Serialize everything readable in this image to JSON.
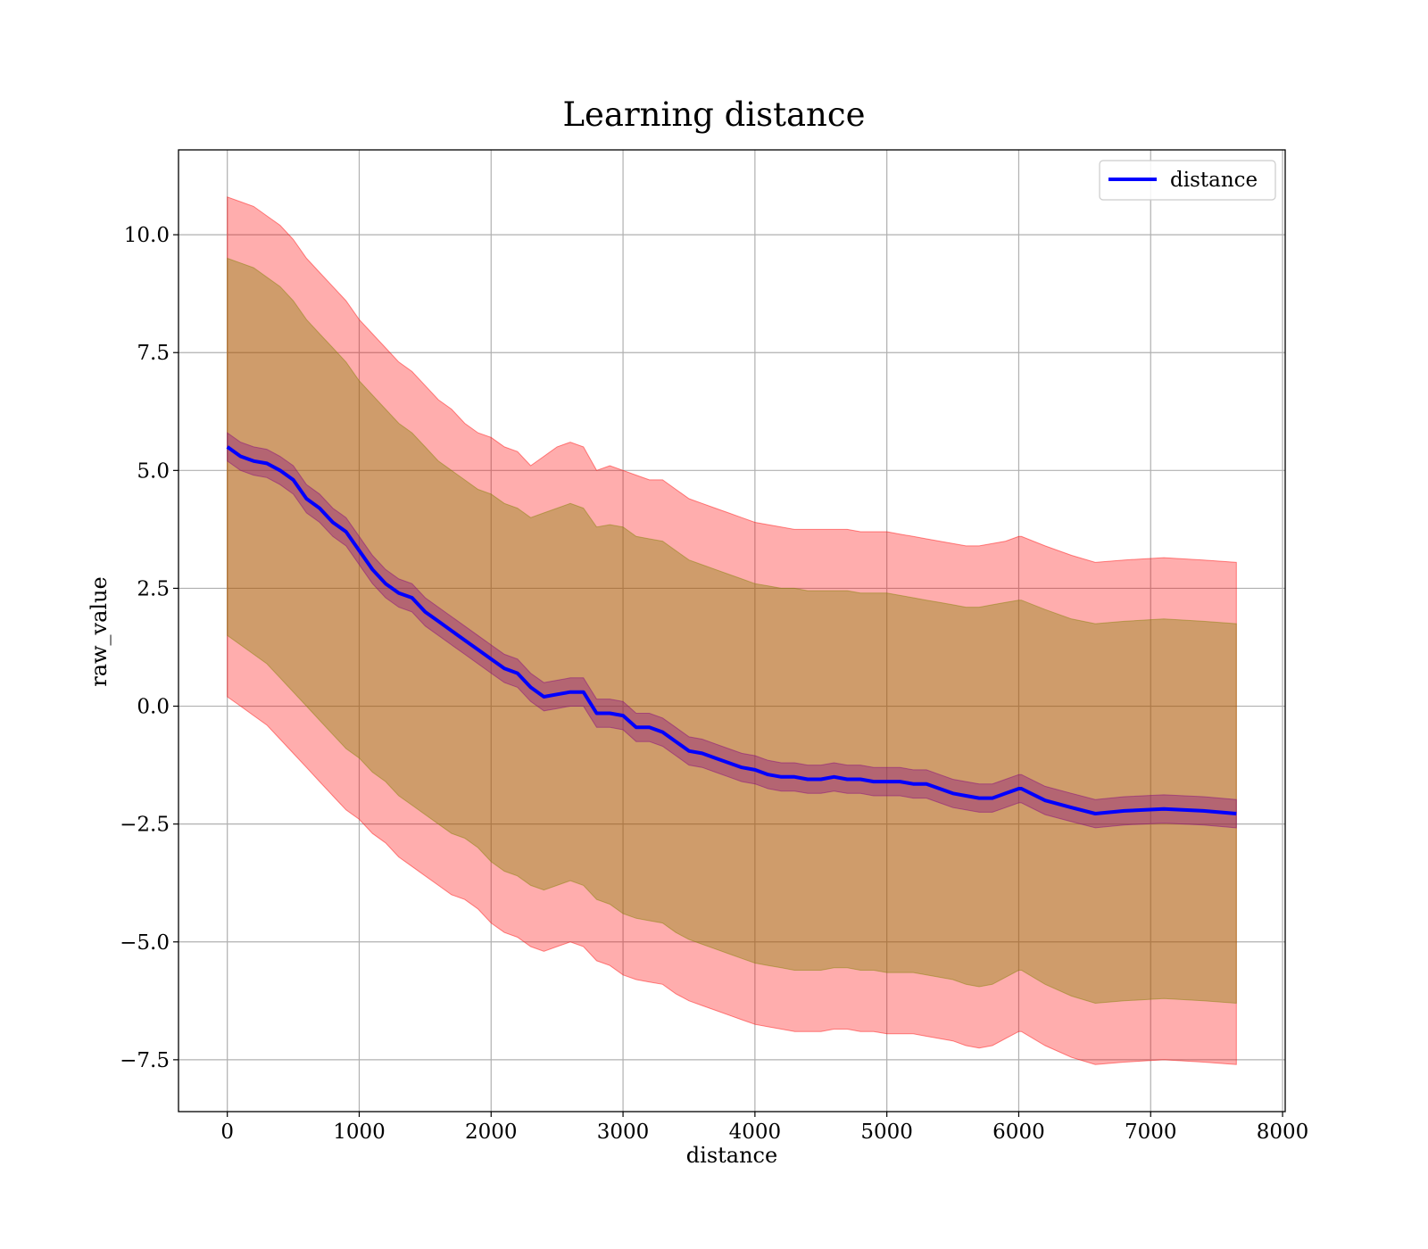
{
  "chart_data": {
    "type": "line",
    "title": "Learning distance",
    "xlabel": "distance",
    "ylabel": "raw_value",
    "xlim": [
      -370,
      8020
    ],
    "ylim": [
      -8.6,
      11.8
    ],
    "x_ticks": [
      0,
      1000,
      2000,
      3000,
      4000,
      5000,
      6000,
      7000,
      8000
    ],
    "x_tick_labels": [
      "0",
      "1000",
      "2000",
      "3000",
      "4000",
      "5000",
      "6000",
      "7000",
      "8000"
    ],
    "y_ticks": [
      -7.5,
      -5.0,
      -2.5,
      0.0,
      2.5,
      5.0,
      7.5,
      10.0
    ],
    "y_tick_labels": [
      "−7.5",
      "−5.0",
      "−2.5",
      "0.0",
      "2.5",
      "5.0",
      "7.5",
      "10.0"
    ],
    "grid": true,
    "legend": {
      "position": "top-right",
      "entries": [
        "distance"
      ]
    },
    "colors": {
      "line": "#0000ff",
      "outer_band": "#ff0000",
      "middle_band": "#808000",
      "inner_band": "#800080"
    },
    "x": [
      0,
      100,
      200,
      300,
      400,
      500,
      600,
      700,
      800,
      900,
      1000,
      1100,
      1200,
      1300,
      1400,
      1500,
      1600,
      1700,
      1800,
      1900,
      2000,
      2100,
      2200,
      2300,
      2400,
      2500,
      2600,
      2700,
      2800,
      2900,
      3000,
      3100,
      3200,
      3300,
      3400,
      3500,
      3600,
      3700,
      3800,
      3900,
      4000,
      4100,
      4200,
      4300,
      4400,
      4500,
      4600,
      4700,
      4800,
      4900,
      5000,
      5100,
      5200,
      5300,
      5400,
      5500,
      5600,
      5700,
      5800,
      5900,
      6000,
      6020,
      6200,
      6400,
      6580,
      6800,
      7100,
      7400,
      7650
    ],
    "series": [
      {
        "name": "distance",
        "kind": "line",
        "values": [
          5.5,
          5.3,
          5.2,
          5.15,
          5.0,
          4.8,
          4.4,
          4.2,
          3.9,
          3.7,
          3.3,
          2.9,
          2.6,
          2.4,
          2.3,
          2.0,
          1.8,
          1.6,
          1.4,
          1.2,
          1.0,
          0.8,
          0.7,
          0.4,
          0.2,
          0.25,
          0.3,
          0.3,
          -0.15,
          -0.15,
          -0.2,
          -0.45,
          -0.45,
          -0.55,
          -0.75,
          -0.95,
          -1.0,
          -1.1,
          -1.2,
          -1.3,
          -1.35,
          -1.45,
          -1.5,
          -1.5,
          -1.55,
          -1.55,
          -1.5,
          -1.55,
          -1.55,
          -1.6,
          -1.6,
          -1.6,
          -1.65,
          -1.65,
          -1.75,
          -1.85,
          -1.9,
          -1.95,
          -1.95,
          -1.85,
          -1.75,
          -1.75,
          -2.0,
          -2.15,
          -2.28,
          -2.22,
          -2.18,
          -2.22,
          -2.28
        ]
      },
      {
        "kind": "band",
        "role": "outer",
        "upper": [
          10.8,
          10.7,
          10.6,
          10.4,
          10.2,
          9.9,
          9.5,
          9.2,
          8.9,
          8.6,
          8.2,
          7.9,
          7.6,
          7.3,
          7.1,
          6.8,
          6.5,
          6.3,
          6.0,
          5.8,
          5.7,
          5.5,
          5.4,
          5.1,
          5.3,
          5.5,
          5.6,
          5.5,
          5.0,
          5.1,
          5.0,
          4.9,
          4.8,
          4.8,
          4.6,
          4.4,
          4.3,
          4.2,
          4.1,
          4.0,
          3.9,
          3.85,
          3.8,
          3.75,
          3.75,
          3.75,
          3.75,
          3.75,
          3.7,
          3.7,
          3.7,
          3.65,
          3.6,
          3.55,
          3.5,
          3.45,
          3.4,
          3.4,
          3.45,
          3.5,
          3.6,
          3.6,
          3.4,
          3.2,
          3.05,
          3.1,
          3.15,
          3.1,
          3.05
        ],
        "lower": [
          0.2,
          0.0,
          -0.2,
          -0.4,
          -0.7,
          -1.0,
          -1.3,
          -1.6,
          -1.9,
          -2.2,
          -2.4,
          -2.7,
          -2.9,
          -3.2,
          -3.4,
          -3.6,
          -3.8,
          -4.0,
          -4.1,
          -4.3,
          -4.6,
          -4.8,
          -4.9,
          -5.1,
          -5.2,
          -5.1,
          -5.0,
          -5.1,
          -5.4,
          -5.5,
          -5.7,
          -5.8,
          -5.85,
          -5.9,
          -6.1,
          -6.25,
          -6.35,
          -6.45,
          -6.55,
          -6.65,
          -6.75,
          -6.8,
          -6.85,
          -6.9,
          -6.9,
          -6.9,
          -6.85,
          -6.85,
          -6.9,
          -6.9,
          -6.95,
          -6.95,
          -6.95,
          -7.0,
          -7.05,
          -7.1,
          -7.2,
          -7.25,
          -7.2,
          -7.05,
          -6.9,
          -6.9,
          -7.2,
          -7.45,
          -7.6,
          -7.55,
          -7.5,
          -7.55,
          -7.6
        ]
      },
      {
        "kind": "band",
        "role": "middle",
        "upper": [
          9.5,
          9.4,
          9.3,
          9.1,
          8.9,
          8.6,
          8.2,
          7.9,
          7.6,
          7.3,
          6.9,
          6.6,
          6.3,
          6.0,
          5.8,
          5.5,
          5.2,
          5.0,
          4.8,
          4.6,
          4.5,
          4.3,
          4.2,
          4.0,
          4.1,
          4.2,
          4.3,
          4.2,
          3.8,
          3.85,
          3.8,
          3.6,
          3.55,
          3.5,
          3.3,
          3.1,
          3.0,
          2.9,
          2.8,
          2.7,
          2.6,
          2.55,
          2.5,
          2.5,
          2.45,
          2.45,
          2.45,
          2.45,
          2.4,
          2.4,
          2.4,
          2.35,
          2.3,
          2.25,
          2.2,
          2.15,
          2.1,
          2.1,
          2.15,
          2.2,
          2.25,
          2.25,
          2.05,
          1.85,
          1.75,
          1.8,
          1.85,
          1.8,
          1.75
        ],
        "lower": [
          1.5,
          1.3,
          1.1,
          0.9,
          0.6,
          0.3,
          0.0,
          -0.3,
          -0.6,
          -0.9,
          -1.1,
          -1.4,
          -1.6,
          -1.9,
          -2.1,
          -2.3,
          -2.5,
          -2.7,
          -2.8,
          -3.0,
          -3.3,
          -3.5,
          -3.6,
          -3.8,
          -3.9,
          -3.8,
          -3.7,
          -3.8,
          -4.1,
          -4.2,
          -4.4,
          -4.5,
          -4.55,
          -4.6,
          -4.8,
          -4.95,
          -5.05,
          -5.15,
          -5.25,
          -5.35,
          -5.45,
          -5.5,
          -5.55,
          -5.6,
          -5.6,
          -5.6,
          -5.55,
          -5.55,
          -5.6,
          -5.6,
          -5.65,
          -5.65,
          -5.65,
          -5.7,
          -5.75,
          -5.8,
          -5.9,
          -5.95,
          -5.9,
          -5.75,
          -5.6,
          -5.6,
          -5.9,
          -6.15,
          -6.3,
          -6.25,
          -6.2,
          -6.25,
          -6.3
        ]
      },
      {
        "kind": "band",
        "role": "inner",
        "upper": [
          5.8,
          5.6,
          5.5,
          5.45,
          5.3,
          5.1,
          4.7,
          4.5,
          4.2,
          4.0,
          3.6,
          3.2,
          2.9,
          2.7,
          2.6,
          2.3,
          2.1,
          1.9,
          1.7,
          1.5,
          1.3,
          1.1,
          1.0,
          0.7,
          0.5,
          0.55,
          0.6,
          0.6,
          0.15,
          0.15,
          0.1,
          -0.15,
          -0.15,
          -0.25,
          -0.45,
          -0.65,
          -0.7,
          -0.8,
          -0.9,
          -1.0,
          -1.05,
          -1.15,
          -1.2,
          -1.2,
          -1.25,
          -1.25,
          -1.2,
          -1.25,
          -1.25,
          -1.3,
          -1.3,
          -1.3,
          -1.35,
          -1.35,
          -1.45,
          -1.55,
          -1.6,
          -1.65,
          -1.65,
          -1.55,
          -1.45,
          -1.45,
          -1.7,
          -1.85,
          -1.98,
          -1.92,
          -1.88,
          -1.92,
          -1.98
        ],
        "lower": [
          5.2,
          5.0,
          4.9,
          4.85,
          4.7,
          4.5,
          4.1,
          3.9,
          3.6,
          3.4,
          3.0,
          2.6,
          2.3,
          2.1,
          2.0,
          1.7,
          1.5,
          1.3,
          1.1,
          0.9,
          0.7,
          0.5,
          0.4,
          0.1,
          -0.1,
          -0.05,
          0.0,
          0.0,
          -0.45,
          -0.45,
          -0.5,
          -0.75,
          -0.75,
          -0.85,
          -1.05,
          -1.25,
          -1.3,
          -1.4,
          -1.5,
          -1.6,
          -1.65,
          -1.75,
          -1.8,
          -1.8,
          -1.85,
          -1.85,
          -1.8,
          -1.85,
          -1.85,
          -1.9,
          -1.9,
          -1.9,
          -1.95,
          -1.95,
          -2.05,
          -2.15,
          -2.2,
          -2.25,
          -2.25,
          -2.15,
          -2.05,
          -2.05,
          -2.3,
          -2.45,
          -2.58,
          -2.52,
          -2.48,
          -2.52,
          -2.58
        ]
      }
    ]
  }
}
